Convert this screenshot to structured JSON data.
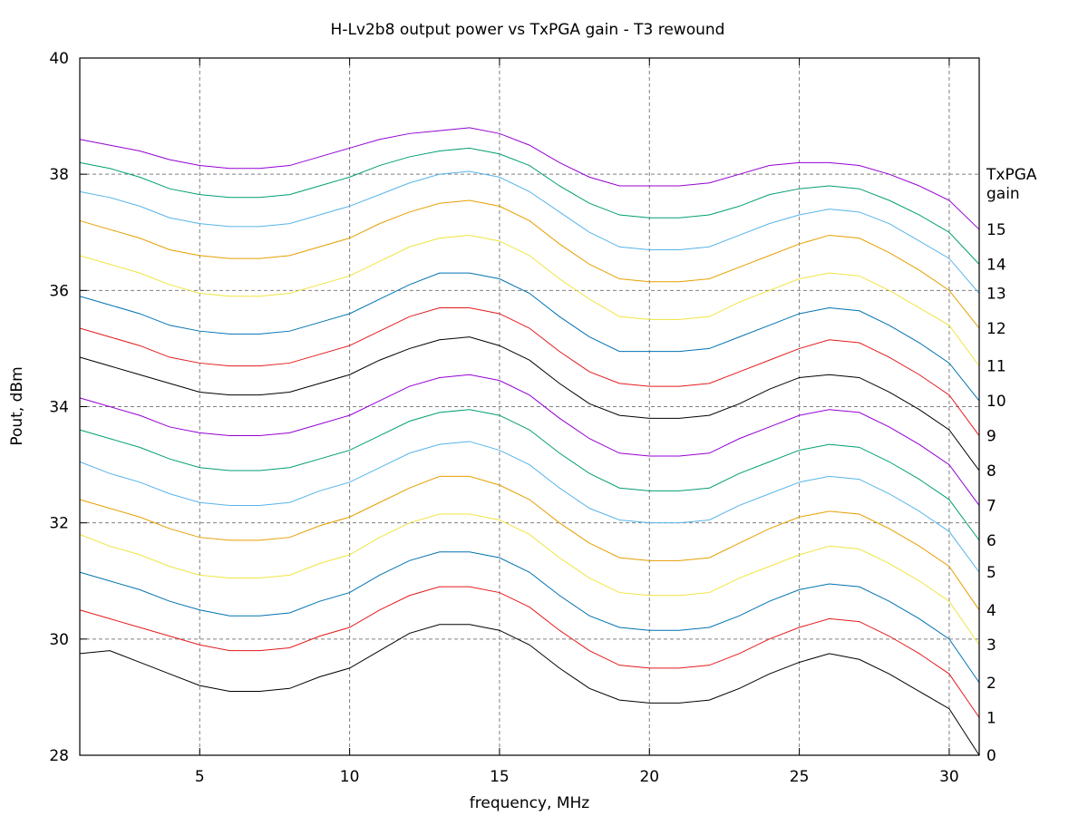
{
  "chart_data": {
    "type": "line",
    "title": "H-Lv2b8 output power vs TxPGA gain - T3 rewound",
    "xlabel": "frequency, MHz",
    "ylabel": "Pout, dBm",
    "xlim": [
      1,
      31
    ],
    "ylim": [
      28,
      40
    ],
    "x_ticks": [
      5,
      10,
      15,
      20,
      25,
      30
    ],
    "y_ticks": [
      28,
      30,
      32,
      34,
      36,
      38,
      40
    ],
    "grid": true,
    "legend_title": [
      "TxPGA",
      "gain"
    ],
    "legend_placement": "right",
    "x": [
      1,
      2,
      3,
      4,
      5,
      6,
      7,
      8,
      9,
      10,
      11,
      12,
      13,
      14,
      15,
      16,
      17,
      18,
      19,
      20,
      21,
      22,
      23,
      24,
      25,
      26,
      27,
      28,
      29,
      30,
      31
    ],
    "series": [
      {
        "name": "0",
        "color": "#000000",
        "values": [
          29.75,
          29.8,
          29.6,
          29.4,
          29.2,
          29.1,
          29.1,
          29.15,
          29.35,
          29.5,
          29.8,
          30.1,
          30.25,
          30.25,
          30.15,
          29.9,
          29.5,
          29.15,
          28.95,
          28.9,
          28.9,
          28.95,
          29.15,
          29.4,
          29.6,
          29.75,
          29.65,
          29.4,
          29.1,
          28.8,
          28.0
        ]
      },
      {
        "name": "1",
        "color": "#e41a1c",
        "values": [
          30.5,
          30.35,
          30.2,
          30.05,
          29.9,
          29.8,
          29.8,
          29.85,
          30.05,
          30.2,
          30.5,
          30.75,
          30.9,
          30.9,
          30.8,
          30.55,
          30.15,
          29.8,
          29.55,
          29.5,
          29.5,
          29.55,
          29.75,
          30.0,
          30.2,
          30.35,
          30.3,
          30.05,
          29.75,
          29.4,
          28.65
        ]
      },
      {
        "name": "2",
        "color": "#0072b2",
        "values": [
          31.15,
          31.0,
          30.85,
          30.65,
          30.5,
          30.4,
          30.4,
          30.45,
          30.65,
          30.8,
          31.1,
          31.35,
          31.5,
          31.5,
          31.4,
          31.15,
          30.75,
          30.4,
          30.2,
          30.15,
          30.15,
          30.2,
          30.4,
          30.65,
          30.85,
          30.95,
          30.9,
          30.65,
          30.35,
          30.0,
          29.25
        ]
      },
      {
        "name": "3",
        "color": "#f0e442",
        "values": [
          31.8,
          31.6,
          31.45,
          31.25,
          31.1,
          31.05,
          31.05,
          31.1,
          31.3,
          31.45,
          31.75,
          32.0,
          32.15,
          32.15,
          32.05,
          31.8,
          31.4,
          31.05,
          30.8,
          30.75,
          30.75,
          30.8,
          31.05,
          31.25,
          31.45,
          31.6,
          31.55,
          31.3,
          31.0,
          30.65,
          29.9
        ]
      },
      {
        "name": "4",
        "color": "#e69f00",
        "values": [
          32.4,
          32.25,
          32.1,
          31.9,
          31.75,
          31.7,
          31.7,
          31.75,
          31.95,
          32.1,
          32.35,
          32.6,
          32.8,
          32.8,
          32.65,
          32.4,
          32.0,
          31.65,
          31.4,
          31.35,
          31.35,
          31.4,
          31.65,
          31.9,
          32.1,
          32.2,
          32.15,
          31.9,
          31.6,
          31.25,
          30.5
        ]
      },
      {
        "name": "5",
        "color": "#56b4e9",
        "values": [
          33.05,
          32.85,
          32.7,
          32.5,
          32.35,
          32.3,
          32.3,
          32.35,
          32.55,
          32.7,
          32.95,
          33.2,
          33.35,
          33.4,
          33.25,
          33.0,
          32.6,
          32.25,
          32.05,
          32.0,
          32.0,
          32.05,
          32.3,
          32.5,
          32.7,
          32.8,
          32.75,
          32.5,
          32.2,
          31.85,
          31.15
        ]
      },
      {
        "name": "6",
        "color": "#009e73",
        "values": [
          33.6,
          33.45,
          33.3,
          33.1,
          32.95,
          32.9,
          32.9,
          32.95,
          33.1,
          33.25,
          33.5,
          33.75,
          33.9,
          33.95,
          33.85,
          33.6,
          33.2,
          32.85,
          32.6,
          32.55,
          32.55,
          32.6,
          32.85,
          33.05,
          33.25,
          33.35,
          33.3,
          33.05,
          32.75,
          32.4,
          31.7
        ]
      },
      {
        "name": "7",
        "color": "#9400d3",
        "values": [
          34.15,
          34.0,
          33.85,
          33.65,
          33.55,
          33.5,
          33.5,
          33.55,
          33.7,
          33.85,
          34.1,
          34.35,
          34.5,
          34.55,
          34.45,
          34.2,
          33.8,
          33.45,
          33.2,
          33.15,
          33.15,
          33.2,
          33.45,
          33.65,
          33.85,
          33.95,
          33.9,
          33.65,
          33.35,
          33.0,
          32.3
        ]
      },
      {
        "name": "8",
        "color": "#000000",
        "values": [
          34.85,
          34.7,
          34.55,
          34.4,
          34.25,
          34.2,
          34.2,
          34.25,
          34.4,
          34.55,
          34.8,
          35.0,
          35.15,
          35.2,
          35.05,
          34.8,
          34.4,
          34.05,
          33.85,
          33.8,
          33.8,
          33.85,
          34.05,
          34.3,
          34.5,
          34.55,
          34.5,
          34.25,
          33.95,
          33.6,
          32.9
        ]
      },
      {
        "name": "9",
        "color": "#e41a1c",
        "values": [
          35.35,
          35.2,
          35.05,
          34.85,
          34.75,
          34.7,
          34.7,
          34.75,
          34.9,
          35.05,
          35.3,
          35.55,
          35.7,
          35.7,
          35.6,
          35.35,
          34.95,
          34.6,
          34.4,
          34.35,
          34.35,
          34.4,
          34.6,
          34.8,
          35.0,
          35.15,
          35.1,
          34.85,
          34.55,
          34.2,
          33.5
        ]
      },
      {
        "name": "10",
        "color": "#0072b2",
        "values": [
          35.9,
          35.75,
          35.6,
          35.4,
          35.3,
          35.25,
          35.25,
          35.3,
          35.45,
          35.6,
          35.85,
          36.1,
          36.3,
          36.3,
          36.2,
          35.95,
          35.55,
          35.2,
          34.95,
          34.95,
          34.95,
          35.0,
          35.2,
          35.4,
          35.6,
          35.7,
          35.65,
          35.4,
          35.1,
          34.75,
          34.1
        ]
      },
      {
        "name": "11",
        "color": "#f0e442",
        "values": [
          36.6,
          36.45,
          36.3,
          36.1,
          35.95,
          35.9,
          35.9,
          35.95,
          36.1,
          36.25,
          36.5,
          36.75,
          36.9,
          36.95,
          36.85,
          36.6,
          36.2,
          35.85,
          35.55,
          35.5,
          35.5,
          35.55,
          35.8,
          36.0,
          36.2,
          36.3,
          36.25,
          36.0,
          35.7,
          35.4,
          34.7
        ]
      },
      {
        "name": "12",
        "color": "#e69f00",
        "values": [
          37.2,
          37.05,
          36.9,
          36.7,
          36.6,
          36.55,
          36.55,
          36.6,
          36.75,
          36.9,
          37.15,
          37.35,
          37.5,
          37.55,
          37.45,
          37.2,
          36.8,
          36.45,
          36.2,
          36.15,
          36.15,
          36.2,
          36.4,
          36.6,
          36.8,
          36.95,
          36.9,
          36.65,
          36.35,
          36.0,
          35.35
        ]
      },
      {
        "name": "13",
        "color": "#56b4e9",
        "values": [
          37.7,
          37.6,
          37.45,
          37.25,
          37.15,
          37.1,
          37.1,
          37.15,
          37.3,
          37.45,
          37.65,
          37.85,
          38.0,
          38.05,
          37.95,
          37.7,
          37.35,
          37.0,
          36.75,
          36.7,
          36.7,
          36.75,
          36.95,
          37.15,
          37.3,
          37.4,
          37.35,
          37.15,
          36.85,
          36.55,
          35.95
        ]
      },
      {
        "name": "14",
        "color": "#009e73",
        "values": [
          38.2,
          38.1,
          37.95,
          37.75,
          37.65,
          37.6,
          37.6,
          37.65,
          37.8,
          37.95,
          38.15,
          38.3,
          38.4,
          38.45,
          38.35,
          38.15,
          37.8,
          37.5,
          37.3,
          37.25,
          37.25,
          37.3,
          37.45,
          37.65,
          37.75,
          37.8,
          37.75,
          37.55,
          37.3,
          37.0,
          36.45
        ]
      },
      {
        "name": "15",
        "color": "#9400d3",
        "values": [
          38.6,
          38.5,
          38.4,
          38.25,
          38.15,
          38.1,
          38.1,
          38.15,
          38.3,
          38.45,
          38.6,
          38.7,
          38.75,
          38.8,
          38.7,
          38.5,
          38.2,
          37.95,
          37.8,
          37.8,
          37.8,
          37.85,
          38.0,
          38.15,
          38.2,
          38.2,
          38.15,
          38.0,
          37.8,
          37.55,
          37.05
        ]
      }
    ]
  }
}
